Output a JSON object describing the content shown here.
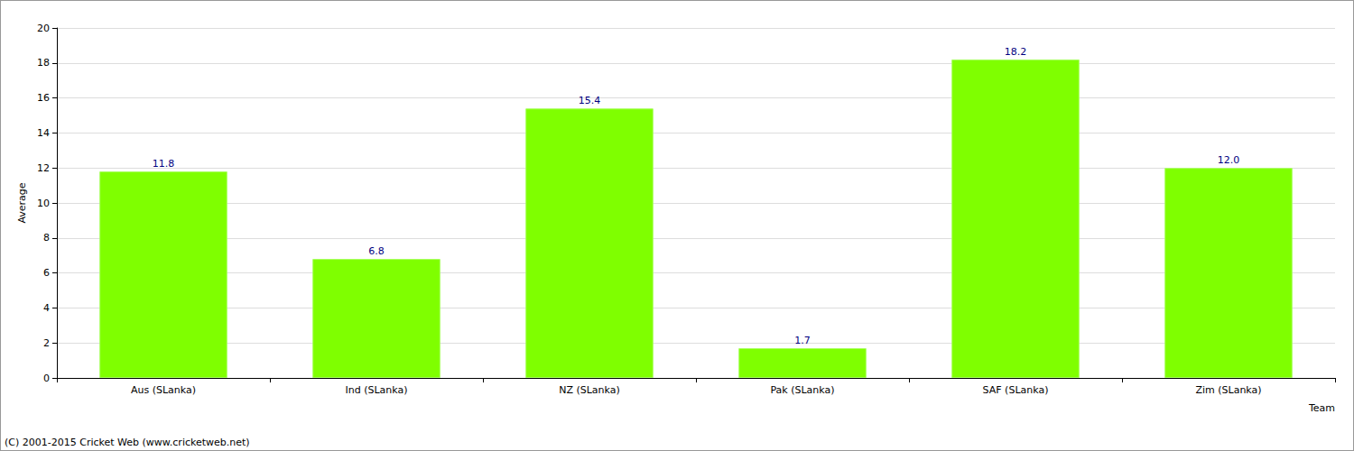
{
  "chart_data": {
    "type": "bar",
    "x_label": "Team",
    "y_label": "Average",
    "categories": [
      "Aus (SLanka)",
      "Ind (SLanka)",
      "NZ (SLanka)",
      "Pak (SLanka)",
      "SAF (SLanka)",
      "Zim (SLanka)"
    ],
    "values": [
      11.8,
      6.8,
      15.4,
      1.7,
      18.2,
      12.0
    ],
    "value_labels": [
      "11.8",
      "6.8",
      "15.4",
      "1.7",
      "18.2",
      "12.0"
    ],
    "color": "#7fff00",
    "ylim": [
      0,
      20
    ],
    "yticks": [
      0,
      2,
      4,
      6,
      8,
      10,
      12,
      14,
      16,
      18,
      20
    ],
    "grid": true,
    "data_labels": true,
    "annotations": [
      "(C) 2001-2015 Cricket Web (www.cricketweb.net)"
    ]
  }
}
